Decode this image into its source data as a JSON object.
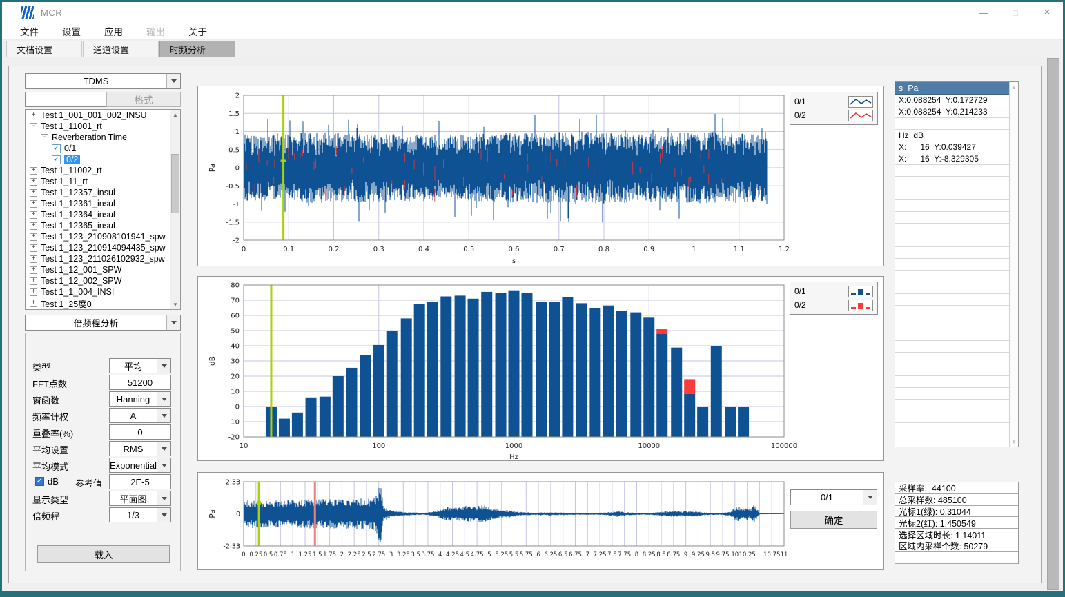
{
  "window": {
    "title": "MCR",
    "controls": {
      "minimize": "—",
      "maximize": "□",
      "close": "✕"
    }
  },
  "menu": {
    "items": [
      {
        "id": "file",
        "label": "文件",
        "enabled": true
      },
      {
        "id": "settings",
        "label": "设置",
        "enabled": true
      },
      {
        "id": "apply",
        "label": "应用",
        "enabled": true
      },
      {
        "id": "output",
        "label": "输出",
        "enabled": false
      },
      {
        "id": "about",
        "label": "关于",
        "enabled": true
      }
    ]
  },
  "tabs": [
    {
      "id": "doc-settings",
      "label": "文档设置",
      "active": false
    },
    {
      "id": "channel-settings",
      "label": "通道设置",
      "active": false
    },
    {
      "id": "time-freq",
      "label": "时频分析",
      "active": true
    }
  ],
  "left_panel": {
    "format_dropdown": "TDMS",
    "format_input": "",
    "format_button": "格式",
    "tree": [
      {
        "label": "Test 1_001_001_002_INSU",
        "level": 0,
        "expander": "+"
      },
      {
        "label": "Test 1_11001_rt",
        "level": 0,
        "expander": "-"
      },
      {
        "label": "Reverberation Time",
        "level": 1,
        "expander": "-"
      },
      {
        "label": "0/1",
        "level": 2,
        "checkbox": true,
        "checked": true,
        "selected": false
      },
      {
        "label": "0/2",
        "level": 2,
        "checkbox": true,
        "checked": true,
        "selected": true
      },
      {
        "label": "Test 1_11002_rt",
        "level": 0,
        "expander": "+"
      },
      {
        "label": "Test 1_11_rt",
        "level": 0,
        "expander": "+"
      },
      {
        "label": "Test 1_12357_insul",
        "level": 0,
        "expander": "+"
      },
      {
        "label": "Test 1_12361_insul",
        "level": 0,
        "expander": "+"
      },
      {
        "label": "Test 1_12364_insul",
        "level": 0,
        "expander": "+"
      },
      {
        "label": "Test 1_12365_insul",
        "level": 0,
        "expander": "+"
      },
      {
        "label": "Test 1_123_210908101941_spw",
        "level": 0,
        "expander": "+"
      },
      {
        "label": "Test 1_123_210914094435_spw",
        "level": 0,
        "expander": "+"
      },
      {
        "label": "Test 1_123_211026102932_spw",
        "level": 0,
        "expander": "+"
      },
      {
        "label": "Test 1_12_001_SPW",
        "level": 0,
        "expander": "+"
      },
      {
        "label": "Test 1_12_002_SPW",
        "level": 0,
        "expander": "+"
      },
      {
        "label": "Test 1_1_004_INSI",
        "level": 0,
        "expander": "+"
      },
      {
        "label": "Test 1_25度0",
        "level": 0,
        "expander": "+"
      }
    ],
    "analysis_dropdown": "倍频程分析",
    "form": {
      "rows": [
        {
          "label": "类型",
          "value": "平均",
          "type": "select"
        },
        {
          "label": "FFT点数",
          "value": "51200",
          "type": "input"
        },
        {
          "label": "窗函数",
          "value": "Hanning",
          "type": "select"
        },
        {
          "label": "频率计权",
          "value": "A",
          "type": "select"
        },
        {
          "label": "重叠率(%)",
          "value": "0",
          "type": "input"
        },
        {
          "label": "平均设置",
          "value": "RMS",
          "type": "select"
        },
        {
          "label": "平均模式",
          "value": "Exponential",
          "type": "select"
        },
        {
          "label": "dB",
          "label2": "参考值",
          "value": "2E-5",
          "type": "check-input",
          "checked": true
        },
        {
          "label": "显示类型",
          "value": "平面图",
          "type": "select"
        },
        {
          "label": "倍频程",
          "value": "1/3",
          "type": "select"
        }
      ],
      "load_button": "载入"
    }
  },
  "legends": {
    "chart1": {
      "entries": [
        {
          "label": "0/1",
          "color": "#0f5294",
          "icon": "line"
        },
        {
          "label": "0/2",
          "color": "#e03838",
          "icon": "line"
        }
      ]
    },
    "chart2": {
      "entries": [
        {
          "label": "0/1",
          "color": "#0f5294",
          "icon": "bar"
        },
        {
          "label": "0/2",
          "color": "#fb3b3b",
          "icon": "bar"
        }
      ]
    }
  },
  "chart3_controls": {
    "channel_dropdown": "0/1",
    "confirm_button": "确定"
  },
  "cursor_list": {
    "header": "s  Pa",
    "rows": [
      "X:0.088254  Y:0.172729",
      "X:0.088254  Y:0.214233",
      "",
      "Hz  dB",
      "X:      16  Y:0.039427",
      "X:      16  Y:-8.329305"
    ],
    "empty_row_total": 28
  },
  "info_panel": {
    "rows": [
      "采样率:  44100",
      "总采样数: 485100",
      "光标1(绿): 0.31044",
      "光标2(红): 1.450549",
      "选择区域时长: 1.14011",
      "区域内采样个数: 50279"
    ]
  },
  "colors": {
    "frame_teal": "#26707c",
    "series_blue": "#0f5294",
    "series_red": "#fb3b3b",
    "cursor_green": "#a8d400",
    "cursor_red": "#f08080",
    "grid": "#c6c6e0",
    "plot_border": "#8c8c8c",
    "list_header_blue": "#4e7ca6",
    "selection_blue": "#3296f0"
  },
  "chart_data": [
    {
      "id": "time-waveform",
      "type": "line",
      "xlabel": "s",
      "ylabel": "Pa",
      "xlim": [
        0,
        1.2
      ],
      "ylim": [
        -2,
        2
      ],
      "xtick_step": 0.1,
      "ytick_step": 0.5,
      "grid": true,
      "series": [
        {
          "name": "0/1",
          "color": "#0f5294",
          "kind": "broadband-noise",
          "duration": 1.163,
          "envelope": [
            [
              0,
              0.92
            ],
            [
              0.15,
              0.98
            ],
            [
              0.3,
              0.95
            ],
            [
              0.45,
              0.9
            ],
            [
              0.6,
              0.97
            ],
            [
              0.75,
              1.0
            ],
            [
              0.9,
              0.95
            ],
            [
              1.05,
              1.0
            ],
            [
              1.163,
              0.93
            ]
          ],
          "peak": 1.6
        },
        {
          "name": "0/2",
          "color": "#e03838",
          "kind": "broadband-noise",
          "note": "mostly hidden behind 0/1"
        }
      ],
      "cursors": [
        {
          "color": "#a8d400",
          "x": 0.088254,
          "readouts": [
            {
              "series": "0/1",
              "y": 0.172729
            },
            {
              "series": "0/2",
              "y": 0.214233
            }
          ]
        }
      ],
      "legend_position": "outside-right"
    },
    {
      "id": "third-octave-spectrum",
      "type": "bar",
      "xscale": "log",
      "xlabel": "Hz",
      "ylabel": "dB",
      "xlim": [
        10,
        100000
      ],
      "ylim": [
        -20,
        80
      ],
      "xticks": [
        10,
        100,
        1000,
        10000,
        100000
      ],
      "ytick_step": 10,
      "categories": [
        16,
        20,
        25,
        31.5,
        40,
        50,
        63,
        80,
        100,
        125,
        160,
        200,
        250,
        315,
        400,
        500,
        630,
        800,
        1000,
        1250,
        1600,
        2000,
        2500,
        3150,
        4000,
        5000,
        6300,
        8000,
        10000,
        12500,
        16000,
        20000,
        25000,
        31500,
        40000,
        50000
      ],
      "series": [
        {
          "name": "0/1",
          "color": "#0f5294",
          "values": [
            0,
            -8,
            -4,
            6,
            6.5,
            20,
            25.5,
            34,
            40.5,
            50,
            58,
            67.5,
            69,
            72.5,
            73,
            71,
            75.5,
            75,
            76.5,
            75,
            68.7,
            69,
            72,
            68,
            65,
            66.5,
            63,
            62,
            58.5,
            47.9,
            38.8,
            8.2,
            0,
            40,
            0,
            0
          ]
        },
        {
          "name": "0/2",
          "color": "#fb3b3b",
          "visible_overlay": {
            "12500": 50.9,
            "20000": 18
          }
        }
      ],
      "cursors": [
        {
          "color": "#a8d400",
          "x": 16,
          "readouts": [
            {
              "series": "0/1",
              "y": 0.039427
            },
            {
              "series": "0/2",
              "y": -8.329305
            }
          ]
        }
      ]
    },
    {
      "id": "full-record-overview",
      "type": "line",
      "xlabel": "",
      "ylabel": "Pa",
      "xlim": [
        0,
        11
      ],
      "ylim": [
        -2.33,
        2.33
      ],
      "xtick_step": 0.25,
      "xtick_skip_labels": [
        10.5
      ],
      "yticks": [
        2.33,
        0,
        -2.33
      ],
      "series": [
        {
          "name": "0/1",
          "color": "#0f5294",
          "kind": "waveform",
          "envelope": [
            [
              0,
              1.05
            ],
            [
              0.5,
              1.0
            ],
            [
              1,
              1.02
            ],
            [
              1.5,
              1.08
            ],
            [
              2,
              1.08
            ],
            [
              2.5,
              1.15
            ],
            [
              2.7,
              1.35
            ],
            [
              2.78,
              2.33
            ],
            [
              2.85,
              0.55
            ],
            [
              3,
              0.25
            ],
            [
              3.3,
              0.12
            ],
            [
              3.7,
              0.08
            ],
            [
              4,
              0.3
            ],
            [
              4.15,
              0.55
            ],
            [
              4.3,
              0.45
            ],
            [
              4.5,
              0.6
            ],
            [
              4.7,
              0.55
            ],
            [
              4.85,
              0.65
            ],
            [
              5,
              0.5
            ],
            [
              5.2,
              0.3
            ],
            [
              5.4,
              0.28
            ],
            [
              5.6,
              0.15
            ],
            [
              5.9,
              0.1
            ],
            [
              6.2,
              0.12
            ],
            [
              6.5,
              0.1
            ],
            [
              6.8,
              0.08
            ],
            [
              7.1,
              0.07
            ],
            [
              7.4,
              0.1
            ],
            [
              7.6,
              0.22
            ],
            [
              7.8,
              0.12
            ],
            [
              8,
              0.08
            ],
            [
              8.3,
              0.08
            ],
            [
              8.6,
              0.18
            ],
            [
              8.8,
              0.22
            ],
            [
              9,
              0.18
            ],
            [
              9.2,
              0.2
            ],
            [
              9.35,
              0.12
            ],
            [
              9.5,
              0.08
            ],
            [
              9.7,
              0.08
            ],
            [
              9.9,
              0.15
            ],
            [
              10,
              0.5
            ],
            [
              10.08,
              0.55
            ],
            [
              10.15,
              0.3
            ],
            [
              10.22,
              0.5
            ],
            [
              10.3,
              0.35
            ],
            [
              10.38,
              0.65
            ],
            [
              10.45,
              0.4
            ],
            [
              10.5,
              0.04
            ],
            [
              11,
              0.02
            ]
          ]
        }
      ],
      "cursors": [
        {
          "name": "cursor1-green",
          "color": "#a8d400",
          "x": 0.31044,
          "marker_y": 0.8
        },
        {
          "name": "cursor2-red",
          "color": "#f08080",
          "x": 1.450549,
          "marker_y": -0.9
        }
      ]
    }
  ]
}
